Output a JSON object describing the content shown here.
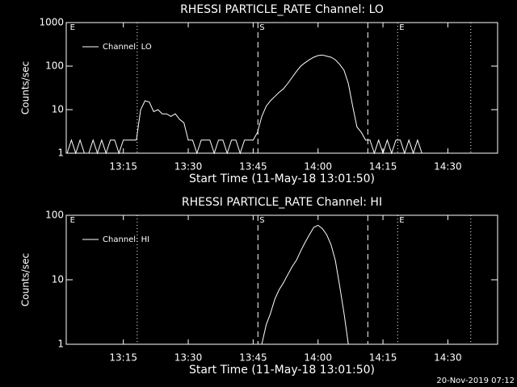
{
  "chart_data": [
    {
      "type": "line",
      "title": "RHESSI PARTICLE_RATE Channel: LO",
      "xlabel": "Start Time (11-May-18 13:01:50)",
      "ylabel": "Counts/sec",
      "log_y": true,
      "color": "#ffffff",
      "legend": "upper left",
      "xlim": [
        1.8,
        101.5
      ],
      "xticks": [
        {
          "value": 15,
          "label": "13:15"
        },
        {
          "value": 30,
          "label": "13:30"
        },
        {
          "value": 45,
          "label": "13:45"
        },
        {
          "value": 60,
          "label": "14:00"
        },
        {
          "value": 75,
          "label": "14:15"
        },
        {
          "value": 90,
          "label": "14:30"
        }
      ],
      "ylim": [
        1,
        1000
      ],
      "yticks": [
        1,
        10,
        100,
        1000
      ],
      "vlines": [
        {
          "x": 18.2,
          "style": "dotted"
        },
        {
          "x": 46.1,
          "style": "dashed"
        },
        {
          "x": 71.5,
          "style": "dashed"
        },
        {
          "x": 78.4,
          "style": "dotted"
        },
        {
          "x": 95.3,
          "style": "dotted"
        }
      ],
      "annotations": [
        {
          "x": 2.3,
          "label": "E"
        },
        {
          "x": 46.1,
          "label": "S"
        },
        {
          "x": 78.4,
          "label": "E"
        }
      ],
      "x": [
        2,
        3,
        4,
        5,
        6,
        7,
        8,
        9,
        10,
        11,
        12,
        13,
        14,
        15,
        16,
        17,
        18,
        19,
        20,
        21,
        22,
        23,
        24,
        25,
        26,
        27,
        28,
        29,
        30,
        31,
        32,
        33,
        34,
        35,
        36,
        37,
        38,
        39,
        40,
        41,
        42,
        43,
        44,
        45,
        46,
        47,
        48,
        49,
        50,
        51,
        52,
        53,
        54,
        55,
        56,
        57,
        58,
        59,
        60,
        61,
        62,
        63,
        64,
        65,
        66,
        67,
        68,
        69,
        70,
        71,
        72,
        73,
        74,
        75,
        76,
        77,
        78,
        79,
        80,
        81,
        82,
        83,
        84
      ],
      "series": [
        {
          "name": "Channel: LO",
          "values": [
            1,
            2,
            1,
            2,
            1,
            1,
            2,
            1,
            2,
            1,
            2,
            2,
            1,
            2,
            2,
            2,
            2,
            10,
            16,
            15,
            9,
            10,
            8,
            8,
            7,
            8,
            6,
            5,
            2,
            2,
            1,
            2,
            2,
            2,
            1,
            2,
            2,
            1,
            2,
            2,
            1,
            2,
            2,
            2,
            3,
            7,
            12,
            16,
            20,
            25,
            30,
            40,
            55,
            75,
            100,
            120,
            140,
            160,
            175,
            180,
            170,
            160,
            140,
            110,
            80,
            40,
            12,
            4,
            3,
            2,
            2,
            1,
            2,
            1,
            2,
            1,
            2,
            2,
            1,
            2,
            1,
            2,
            1
          ]
        }
      ]
    },
    {
      "type": "line",
      "title": "RHESSI PARTICLE_RATE Channel: HI",
      "xlabel": "Start Time (11-May-18 13:01:50)",
      "ylabel": "Counts/sec",
      "log_y": true,
      "color": "#ffffff",
      "legend": "upper left",
      "xlim": [
        1.8,
        101.5
      ],
      "xticks": [
        {
          "value": 15,
          "label": "13:15"
        },
        {
          "value": 30,
          "label": "13:30"
        },
        {
          "value": 45,
          "label": "13:45"
        },
        {
          "value": 60,
          "label": "14:00"
        },
        {
          "value": 75,
          "label": "14:15"
        },
        {
          "value": 90,
          "label": "14:30"
        }
      ],
      "ylim": [
        1,
        100
      ],
      "yticks": [
        1,
        10,
        100
      ],
      "vlines": [
        {
          "x": 18.2,
          "style": "dotted"
        },
        {
          "x": 46.1,
          "style": "dashed"
        },
        {
          "x": 71.5,
          "style": "dashed"
        },
        {
          "x": 78.4,
          "style": "dotted"
        },
        {
          "x": 95.3,
          "style": "dotted"
        }
      ],
      "annotations": [
        {
          "x": 2.3,
          "label": "E"
        },
        {
          "x": 46.1,
          "label": "S"
        },
        {
          "x": 78.4,
          "label": "E"
        }
      ],
      "x": [
        47,
        48,
        49,
        50,
        51,
        52,
        53,
        54,
        55,
        56,
        57,
        58,
        59,
        60,
        61,
        62,
        63,
        64,
        65,
        66,
        67
      ],
      "series": [
        {
          "name": "Channel: HI",
          "values": [
            1,
            2,
            3,
            5,
            7,
            9,
            12,
            16,
            20,
            28,
            38,
            50,
            65,
            70,
            62,
            50,
            35,
            20,
            8,
            3,
            1
          ]
        }
      ]
    }
  ],
  "footer": "20-Nov-2019 07:12"
}
